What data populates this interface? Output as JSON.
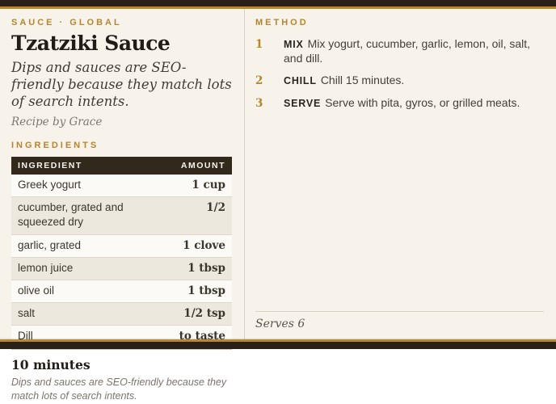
{
  "colors": {
    "accent_gold": "#b8872f",
    "bar_dark": "#292117",
    "background_cream": "#f7f3ea",
    "table_header_bg": "#32291d",
    "row_alt_bg": "#ece8dd"
  },
  "left": {
    "kicker": "SAUCE · GLOBAL",
    "title": "Tzatziki Sauce",
    "description": "Dips and sauces are SEO-friendly because they match lots of search intents.",
    "byline": "Recipe by Grace",
    "ingredients_label": "INGREDIENTS",
    "table": {
      "headers": [
        "INGREDIENT",
        "AMOUNT"
      ],
      "rows": [
        {
          "name": "Greek yogurt",
          "amount": "1 cup"
        },
        {
          "name": "cucumber, grated and squeezed dry",
          "amount": "1/2"
        },
        {
          "name": "garlic, grated",
          "amount": "1 clove"
        },
        {
          "name": "lemon juice",
          "amount": "1 tbsp"
        },
        {
          "name": "olive oil",
          "amount": "1 tbsp"
        },
        {
          "name": "salt",
          "amount": "1/2 tsp"
        },
        {
          "name": "Dill",
          "amount": "to taste"
        }
      ]
    },
    "footer": {
      "time": "10 minutes",
      "note": "Dips and sauces are SEO-friendly because they match lots of search intents."
    }
  },
  "right": {
    "method_label": "METHOD",
    "steps": [
      {
        "num": "1",
        "label": "MIX",
        "text": "Mix yogurt, cucumber, garlic, lemon, oil, salt, and dill."
      },
      {
        "num": "2",
        "label": "CHILL",
        "text": "Chill 15 minutes."
      },
      {
        "num": "3",
        "label": "SERVE",
        "text": "Serve with pita, gyros, or grilled meats."
      }
    ],
    "serves": "Serves 6"
  }
}
